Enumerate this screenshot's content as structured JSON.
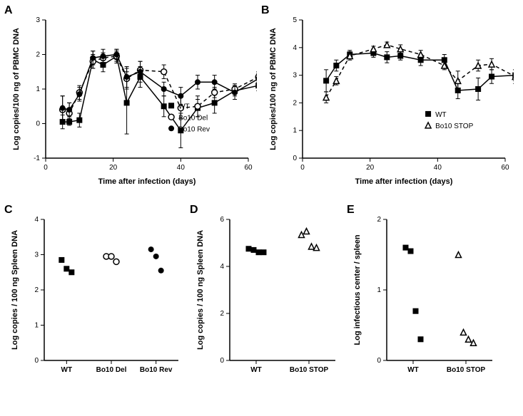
{
  "colors": {
    "axis": "#000000",
    "bg": "#ffffff",
    "line": "#000000"
  },
  "typography": {
    "axis_label_fontsize": 11,
    "tick_fontsize": 10,
    "legend_fontsize": 10,
    "panel_label_fontsize": 16
  },
  "panelA": {
    "label": "A",
    "type": "line",
    "xlabel": "Time after infection (days)",
    "ylabel": "Log copies/100 ng of PBMC DNA",
    "xlim": [
      0,
      60
    ],
    "ylim": [
      -1,
      3
    ],
    "xtick_step": 20,
    "ytick_step": 1,
    "series": [
      {
        "name": "WT",
        "marker": "filled-square",
        "dash": "solid",
        "color": "#000000",
        "x": [
          5,
          7,
          10,
          14,
          17,
          21,
          24,
          28,
          35,
          40,
          45,
          50,
          56,
          63
        ],
        "y": [
          0.05,
          0.05,
          0.1,
          1.85,
          1.7,
          1.95,
          0.6,
          1.35,
          0.5,
          -0.2,
          0.45,
          0.6,
          0.95,
          1.1
        ],
        "err": [
          0.2,
          0.1,
          0.2,
          0.25,
          0.2,
          0.2,
          0.9,
          0.3,
          0.3,
          0.5,
          0.25,
          0.3,
          0.15,
          0.15
        ]
      },
      {
        "name": "Bo10 Del",
        "marker": "open-circle",
        "dash": "dash",
        "color": "#000000",
        "x": [
          5,
          7,
          10,
          14,
          17,
          21,
          24,
          28,
          35,
          40,
          45,
          50,
          56,
          63
        ],
        "y": [
          0.4,
          0.3,
          0.9,
          1.8,
          1.9,
          1.95,
          1.3,
          1.55,
          1.5,
          0.45,
          0.5,
          0.9,
          1.0,
          1.35
        ],
        "err": [
          0.4,
          0.3,
          0.2,
          0.2,
          0.15,
          0.15,
          0.3,
          0.25,
          0.2,
          0.3,
          0.3,
          0.15,
          0.15,
          0.15
        ]
      },
      {
        "name": "Bo10 Rev",
        "marker": "filled-circle",
        "dash": "solid",
        "color": "#000000",
        "x": [
          5,
          7,
          10,
          14,
          17,
          21,
          24,
          28,
          35,
          40,
          45,
          50,
          56,
          63
        ],
        "y": [
          0.45,
          0.4,
          0.85,
          1.9,
          1.95,
          2.0,
          1.35,
          1.5,
          1.0,
          0.8,
          1.2,
          1.2,
          0.9,
          1.3
        ],
        "err": [
          0.35,
          0.2,
          0.2,
          0.2,
          0.2,
          0.15,
          0.3,
          0.3,
          0.2,
          0.25,
          0.2,
          0.2,
          0.2,
          0.15
        ]
      }
    ]
  },
  "panelB": {
    "label": "B",
    "type": "line",
    "xlabel": "Time after infection (days)",
    "ylabel": "Log copies/100 ng of PBMC DNA",
    "xlim": [
      0,
      60
    ],
    "ylim": [
      0,
      5
    ],
    "xtick_step": 20,
    "ytick_step": 1,
    "series": [
      {
        "name": "WT",
        "marker": "filled-square",
        "dash": "solid",
        "color": "#000000",
        "x": [
          7,
          10,
          14,
          21,
          25,
          29,
          35,
          42,
          46,
          52,
          56,
          63
        ],
        "y": [
          2.8,
          3.35,
          3.75,
          3.8,
          3.65,
          3.7,
          3.55,
          3.55,
          2.45,
          2.5,
          2.95,
          3.0
        ],
        "err": [
          0.4,
          0.2,
          0.15,
          0.15,
          0.2,
          0.15,
          0.2,
          0.2,
          0.3,
          0.4,
          0.25,
          0.2
        ]
      },
      {
        "name": "Bo10 STOP",
        "marker": "open-triangle",
        "dash": "dash",
        "color": "#000000",
        "x": [
          7,
          10,
          14,
          21,
          25,
          29,
          35,
          42,
          46,
          52,
          56,
          63
        ],
        "y": [
          2.2,
          2.8,
          3.7,
          3.95,
          4.1,
          3.95,
          3.75,
          3.35,
          2.8,
          3.35,
          3.4,
          2.95
        ],
        "err": [
          0.2,
          0.15,
          0.15,
          0.1,
          0.1,
          0.15,
          0.15,
          0.15,
          0.35,
          0.2,
          0.2,
          0.25
        ]
      }
    ]
  },
  "panelC": {
    "label": "C",
    "type": "scatter",
    "ylabel": "Log copies / 100 ng Spleen DNA",
    "ylim": [
      0,
      4
    ],
    "ytick_step": 1,
    "categories": [
      "WT",
      "Bo10 Del",
      "Bo10 Rev"
    ],
    "series": [
      {
        "name": "WT",
        "marker": "filled-square",
        "color": "#000000",
        "y": [
          2.85,
          2.6,
          2.5
        ]
      },
      {
        "name": "Bo10 Del",
        "marker": "open-circle",
        "color": "#000000",
        "y": [
          2.95,
          2.95,
          2.8
        ]
      },
      {
        "name": "Bo10 Rev",
        "marker": "filled-circle",
        "color": "#000000",
        "y": [
          3.15,
          2.95,
          2.55
        ]
      }
    ]
  },
  "panelD": {
    "label": "D",
    "type": "scatter",
    "ylabel": "Log copies / 100 ng Spleen DNA",
    "ylim": [
      0,
      6
    ],
    "ytick_step": 2,
    "categories": [
      "WT",
      "Bo10 STOP"
    ],
    "series": [
      {
        "name": "WT",
        "marker": "filled-square",
        "color": "#000000",
        "y": [
          4.75,
          4.7,
          4.6,
          4.6
        ]
      },
      {
        "name": "Bo10 STOP",
        "marker": "open-triangle",
        "color": "#000000",
        "y": [
          5.35,
          5.5,
          4.85,
          4.8
        ]
      }
    ]
  },
  "panelE": {
    "label": "E",
    "type": "scatter",
    "ylabel": "Log infectious center / spleen",
    "ylim": [
      0,
      2
    ],
    "ytick_step": 1,
    "categories": [
      "WT",
      "Bo10 STOP"
    ],
    "series": [
      {
        "name": "WT",
        "marker": "filled-square",
        "color": "#000000",
        "y": [
          1.6,
          1.55,
          0.7,
          0.3
        ]
      },
      {
        "name": "Bo10 STOP",
        "marker": "open-triangle",
        "color": "#000000",
        "y": [
          1.5,
          0.4,
          0.3,
          0.25
        ]
      }
    ]
  }
}
